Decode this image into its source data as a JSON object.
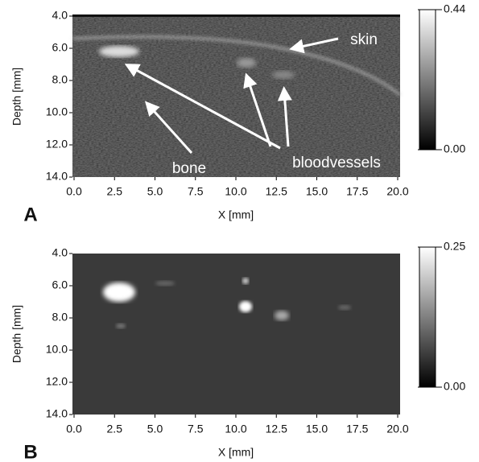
{
  "chart_data": [
    {
      "type": "image",
      "label": "A",
      "xlabel": "X [mm]",
      "ylabel": "Depth [mm]",
      "xlim": [
        0,
        20
      ],
      "ylim": [
        4,
        14
      ],
      "y_inverted": true,
      "xticks": [
        {
          "value": 0,
          "label": "0.0"
        },
        2.5,
        {
          "value": 5,
          "label": "5.0"
        },
        7.5,
        {
          "value": 10,
          "label": "10.0"
        },
        12.5,
        {
          "value": 15,
          "label": "15.0"
        },
        17.5,
        {
          "value": 20,
          "label": "20.0"
        }
      ],
      "yticks": [
        {
          "value": 4,
          "label": "4.0"
        },
        {
          "value": 6,
          "label": "6.0"
        },
        {
          "value": 8,
          "label": "8.0"
        },
        {
          "value": 10,
          "label": "10.0"
        },
        {
          "value": 12,
          "label": "12.0"
        },
        {
          "value": 14,
          "label": "14.0"
        }
      ],
      "colorbar": {
        "lim": [
          0,
          0.44
        ],
        "ticks": [
          {
            "value": 0,
            "label": "0.00"
          },
          0.44
        ]
      },
      "annotations": [
        "skin",
        "bone",
        "bloodvessels"
      ]
    },
    {
      "type": "image",
      "label": "B",
      "xlabel": "X [mm]",
      "ylabel": "Depth [mm]",
      "xlim": [
        0,
        20
      ],
      "ylim": [
        4,
        14
      ],
      "y_inverted": true,
      "xticks": [
        {
          "value": 0,
          "label": "0.0"
        },
        2.5,
        {
          "value": 5,
          "label": "5.0"
        },
        7.5,
        {
          "value": 10,
          "label": "10.0"
        },
        12.5,
        {
          "value": 15,
          "label": "15.0"
        },
        17.5,
        {
          "value": 20,
          "label": "20.0"
        }
      ],
      "yticks": [
        {
          "value": 4,
          "label": "4.0"
        },
        {
          "value": 6,
          "label": "6.0"
        },
        {
          "value": 8,
          "label": "8.0"
        },
        {
          "value": 10,
          "label": "10.0"
        },
        {
          "value": 12,
          "label": "12.0"
        },
        {
          "value": 14,
          "label": "14.0"
        }
      ],
      "colorbar": {
        "lim": [
          0,
          0.25
        ],
        "ticks": [
          {
            "value": 0,
            "label": "0.00"
          },
          0.25
        ]
      },
      "annotations": []
    }
  ]
}
